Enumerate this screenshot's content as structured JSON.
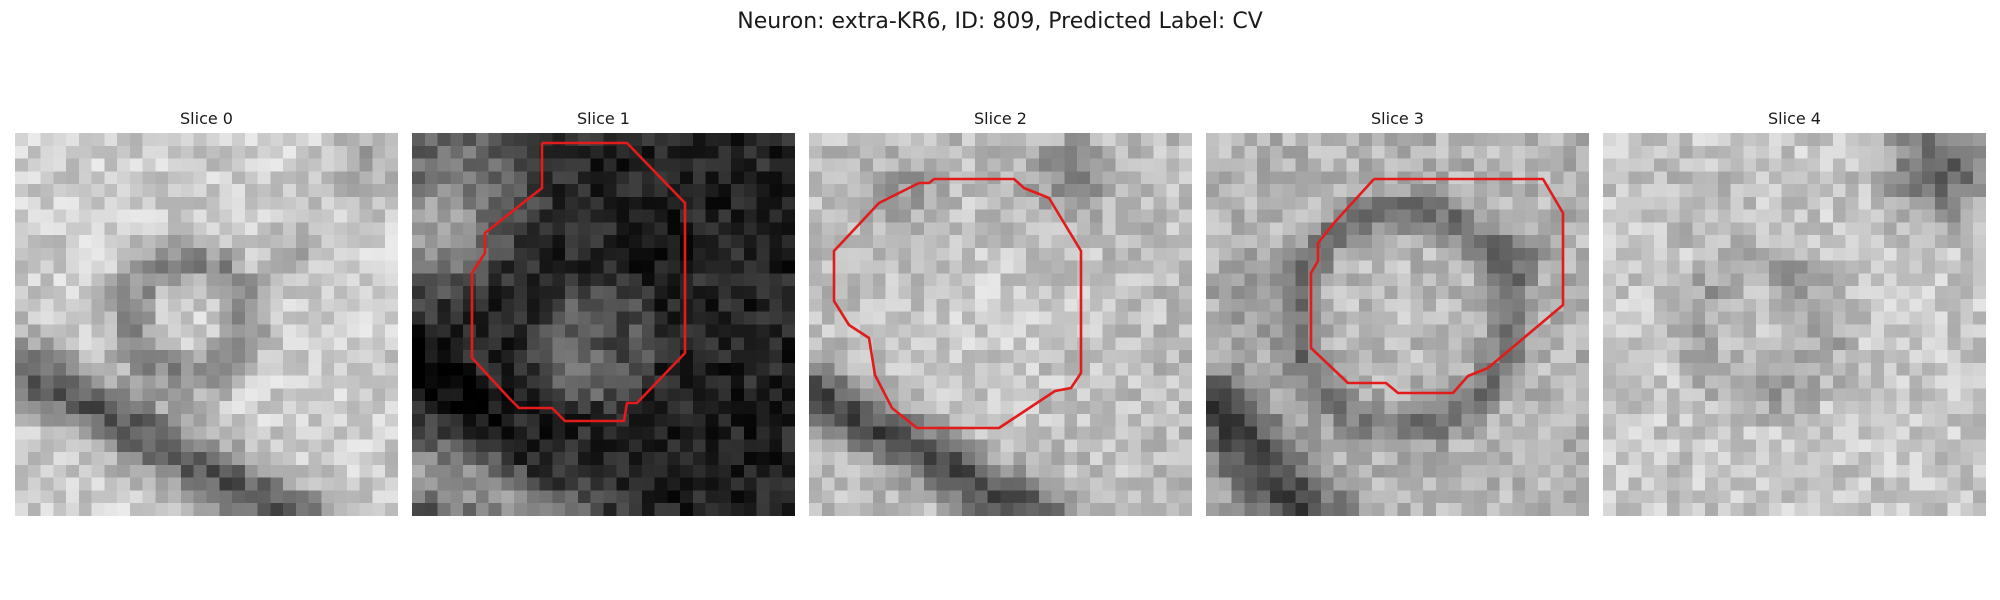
{
  "figure": {
    "title": "Neuron: extra-KR6, ID: 809, Predicted Label: CV",
    "outline_color": "#e21b1b",
    "colormap": "gray"
  },
  "panels": [
    {
      "label": "Slice 0",
      "has_outline": false
    },
    {
      "label": "Slice 1",
      "has_outline": true
    },
    {
      "label": "Slice 2",
      "has_outline": true
    },
    {
      "label": "Slice 3",
      "has_outline": true
    },
    {
      "label": "Slice 4",
      "has_outline": false
    }
  ]
}
